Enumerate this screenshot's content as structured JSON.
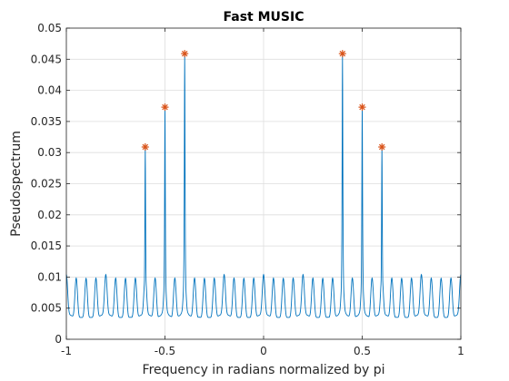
{
  "chart_data": {
    "type": "line",
    "title": "Fast MUSIC",
    "xlabel": "Frequency in radians normalized by pi",
    "ylabel": "Pseudospectrum",
    "xlim": [
      -1,
      1
    ],
    "ylim": [
      0,
      0.05
    ],
    "x_ticks": [
      -1,
      -0.5,
      0,
      0.5,
      1
    ],
    "x_tick_labels": [
      "-1",
      "-0.5",
      "0",
      "0.5",
      "1"
    ],
    "y_ticks": [
      0,
      0.005,
      0.01,
      0.015,
      0.02,
      0.025,
      0.03,
      0.035,
      0.04,
      0.045,
      0.05
    ],
    "y_tick_labels": [
      "0",
      "0.005",
      "0.01",
      "0.015",
      "0.02",
      "0.025",
      "0.03",
      "0.035",
      "0.04",
      "0.045",
      "0.05"
    ],
    "grid": true,
    "series": [
      {
        "kind": "line",
        "color": "#0072BD",
        "peaks": [
          {
            "x": -0.6,
            "y": 0.0309
          },
          {
            "x": -0.5,
            "y": 0.0373
          },
          {
            "x": -0.4,
            "y": 0.0459
          },
          {
            "x": 0.4,
            "y": 0.0459
          },
          {
            "x": 0.5,
            "y": 0.0373
          },
          {
            "x": 0.6,
            "y": 0.0309
          }
        ],
        "baseline": {
          "min": 0.0035,
          "max": 0.0098
        },
        "ripple_period": 0.025
      },
      {
        "kind": "markers",
        "marker": "asterisk",
        "color": "#D95319",
        "x": [
          -0.6,
          -0.5,
          -0.4,
          0.4,
          0.5,
          0.6
        ],
        "y": [
          0.0309,
          0.0373,
          0.0459,
          0.0459,
          0.0373,
          0.0309
        ]
      }
    ]
  }
}
